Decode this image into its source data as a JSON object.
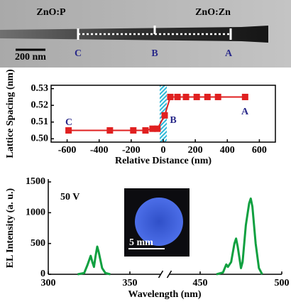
{
  "image": {
    "labels": [
      "ZnO:P",
      "ZnO:Zn",
      "C",
      "B",
      "A"
    ],
    "scale_bar": "200 nm"
  },
  "chart_data": [
    {
      "type": "line",
      "xlabel": "Relative Distance (nm)",
      "ylabel": "Lattice Spacing (nm)",
      "x": [
        -591,
        -333,
        -187,
        -111,
        -67,
        -36,
        9,
        44,
        89,
        142,
        209,
        276,
        342,
        511
      ],
      "series": [
        {
          "color": "#e02020",
          "values": [
            0.505,
            0.505,
            0.505,
            0.505,
            0.506,
            0.506,
            0.514,
            0.525,
            0.525,
            0.525,
            0.525,
            0.525,
            0.525,
            0.525
          ]
        }
      ],
      "xlim": [
        -700,
        700
      ],
      "xticks": [
        -600,
        -400,
        -200,
        0,
        200,
        400,
        600
      ],
      "ylim": [
        0.498,
        0.532
      ],
      "yticks": [
        {
          "value": 0.5,
          "label": "0.50"
        },
        0.51,
        0.52,
        0.53
      ],
      "annotations": [
        "C",
        "B",
        "A"
      ]
    },
    {
      "type": "line",
      "xlabel": "Wavelength (nm)",
      "ylabel": "EL Intensity (a. u.)",
      "series": [
        {
          "color": "#10a040",
          "x": [
            318,
            322,
            324,
            326,
            327,
            328,
            329,
            330,
            331,
            333,
            335,
            338
          ],
          "values": [
            0,
            20,
            150,
            300,
            200,
            120,
            300,
            450,
            350,
            100,
            20,
            0
          ]
        },
        {
          "color": "#10a040",
          "x": [
            460,
            464,
            466,
            467,
            469,
            471,
            472,
            473,
            475,
            476,
            478,
            480,
            481,
            482,
            484,
            486,
            488
          ],
          "values": [
            0,
            30,
            160,
            120,
            200,
            500,
            580,
            450,
            100,
            200,
            800,
            1150,
            1230,
            1100,
            500,
            100,
            0
          ]
        }
      ],
      "xlim": [
        300,
        500
      ],
      "xbreak": [
        372,
        428
      ],
      "xticks": [
        300,
        350,
        450,
        500
      ],
      "ylim": [
        0,
        1500
      ],
      "yticks": [
        0,
        500,
        1000,
        1500
      ],
      "annotations": [
        "50 V"
      ],
      "inset_scale_bar": "5 mm"
    }
  ]
}
